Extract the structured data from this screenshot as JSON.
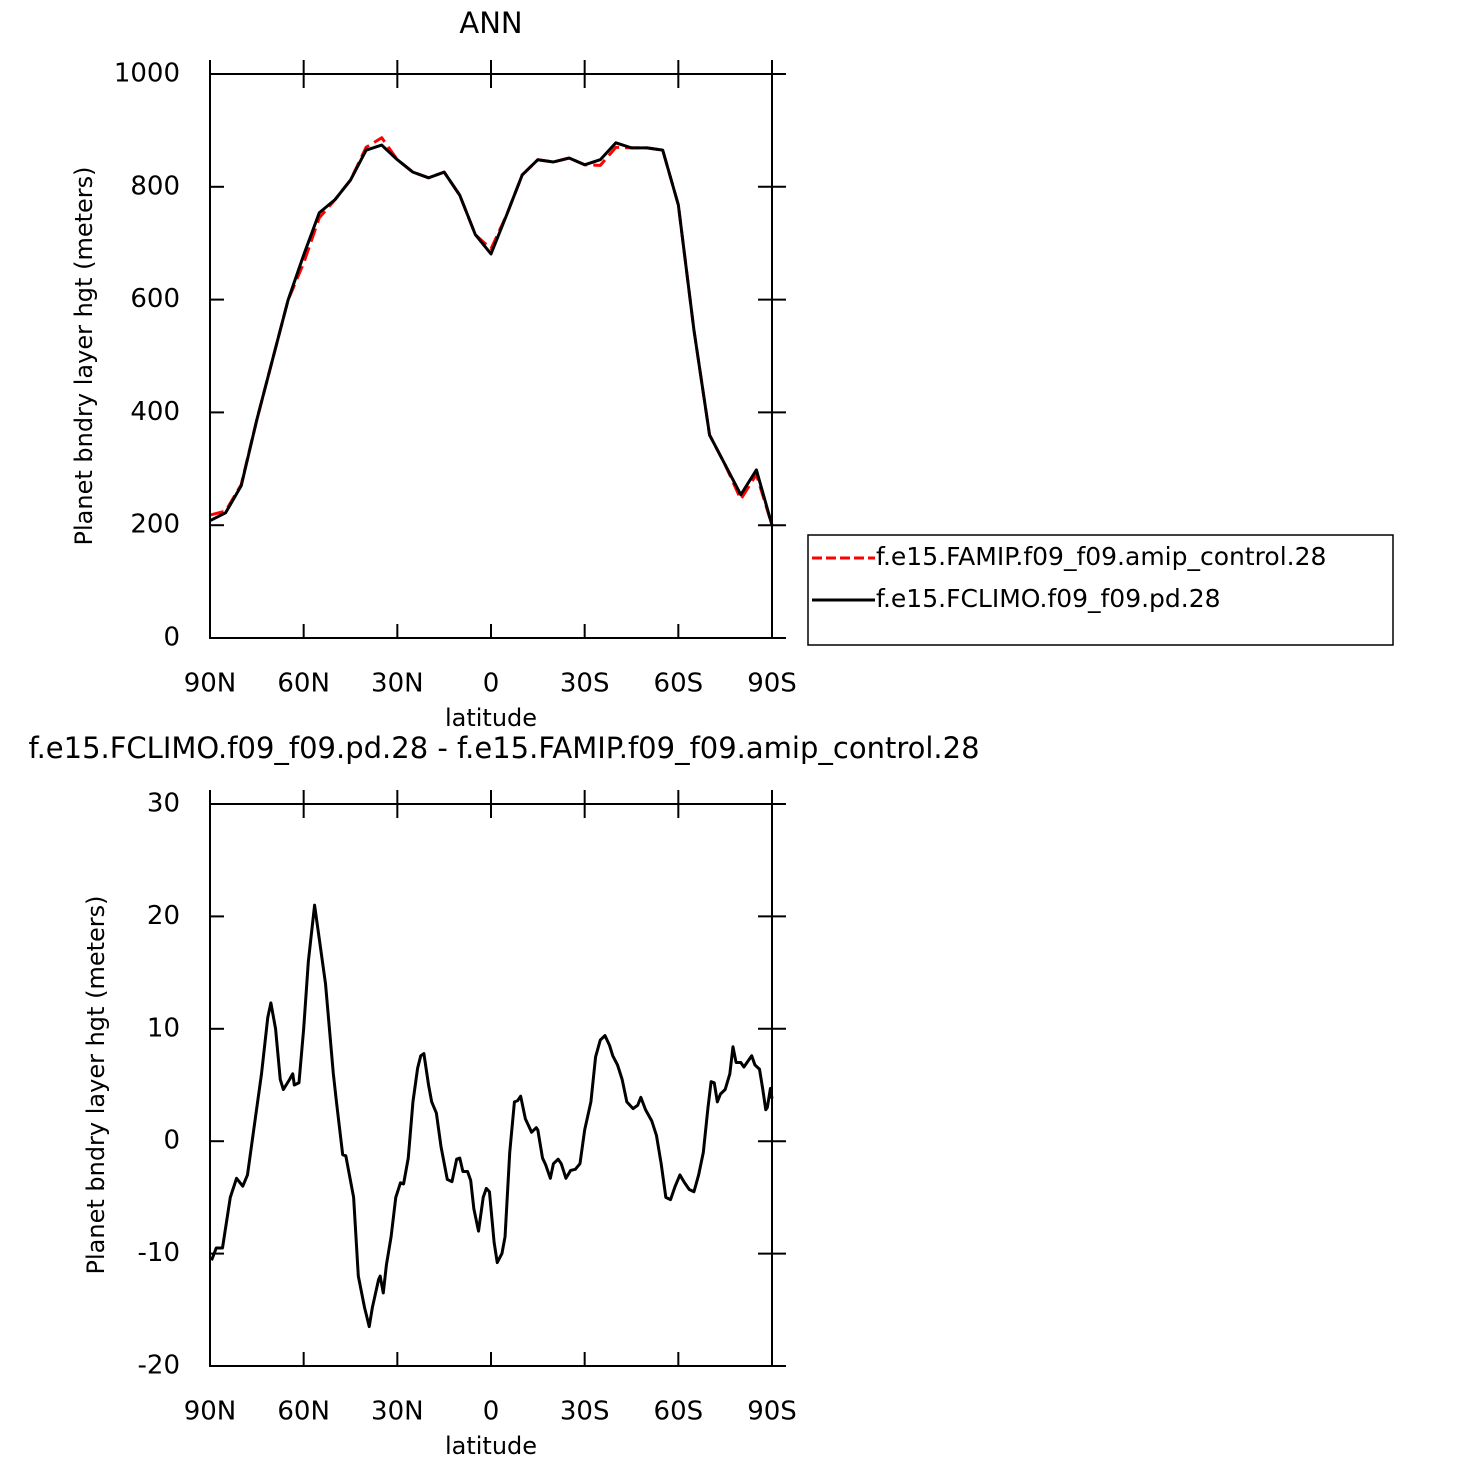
{
  "chart_data": [
    {
      "type": "line",
      "title": "ANN",
      "xlabel": "latitude",
      "ylabel": "Planet bndry layer hgt (meters)",
      "x": [
        90,
        85,
        80,
        75,
        70,
        65,
        60,
        55,
        50,
        45,
        40,
        35,
        30,
        25,
        20,
        15,
        10,
        5,
        0,
        -5,
        -10,
        -15,
        -20,
        -25,
        -30,
        -35,
        -40,
        -45,
        -50,
        -55,
        -60,
        -65,
        -70,
        -75,
        -80,
        -85,
        -90
      ],
      "series": [
        {
          "name": "f.e15.FAMIP.f09_f09.amip_control.28",
          "color": "#ff0000",
          "dash": true,
          "values": [
            218,
            225,
            272,
            387,
            493,
            599,
            665,
            745,
            777,
            812,
            870,
            887,
            848,
            826,
            816,
            826,
            785,
            715,
            690,
            750,
            821,
            848,
            844,
            851,
            839,
            838,
            870,
            869,
            869,
            865,
            768,
            546,
            360,
            307,
            246,
            290,
            200
          ]
        },
        {
          "name": "f.e15.FCLIMO.f09_f09.pd.28",
          "color": "#000000",
          "dash": false,
          "values": [
            208,
            222,
            270,
            387,
            493,
            599,
            679,
            754,
            777,
            812,
            865,
            874,
            848,
            826,
            816,
            826,
            785,
            715,
            681,
            750,
            821,
            848,
            844,
            851,
            839,
            848,
            878,
            869,
            869,
            865,
            768,
            546,
            360,
            307,
            254,
            298,
            200
          ]
        }
      ],
      "xlim": [
        90,
        -90
      ],
      "xticks": [
        {
          "value": 90,
          "label": "90N"
        },
        {
          "value": 60,
          "label": "60N"
        },
        {
          "value": 30,
          "label": "30N"
        },
        0,
        {
          "value": -30,
          "label": "30S"
        },
        {
          "value": -60,
          "label": "60S"
        },
        {
          "value": -90,
          "label": "90S"
        }
      ],
      "ylim": [
        0,
        1000
      ],
      "yticks": [
        0,
        200,
        400,
        600,
        800,
        1000
      ],
      "legend": "right"
    },
    {
      "type": "line",
      "title": "f.e15.FCLIMO.f09_f09.pd.28 - f.e15.FAMIP.f09_f09.amip_control.28",
      "xlabel": "latitude",
      "ylabel": "Planet bndry layer hgt (meters)",
      "color": "#000000",
      "x": [
        89.5,
        88,
        86,
        83.5,
        81.5,
        79.5,
        78,
        75.5,
        73.5,
        71.5,
        70.5,
        69,
        67.5,
        66.5,
        64.5,
        63.5,
        63,
        61.5,
        60,
        58.5,
        56.5,
        55,
        53,
        50.5,
        49.5,
        47.5,
        46.5,
        44,
        42.5,
        40.5,
        39,
        38,
        36,
        35.5,
        34.5,
        33.5,
        32,
        30.5,
        29,
        28,
        26.5,
        25,
        23.5,
        22.5,
        21.5,
        20,
        19,
        17.5,
        16,
        14,
        12.5,
        11,
        10,
        9,
        7.5,
        6.5,
        5.5,
        4,
        2.5,
        1.5,
        0.5,
        -1,
        -2,
        -3.5,
        -4.5,
        -6,
        -7.5,
        -8.5,
        -9.5,
        -11,
        -13,
        -14.5,
        -15,
        -16.5,
        -17.5,
        -19,
        -20,
        -21.5,
        -22.5,
        -24,
        -25.5,
        -27,
        -28.5,
        -30,
        -32,
        -33.5,
        -35,
        -36.5,
        -38,
        -39,
        -40.5,
        -42,
        -43.5,
        -45.5,
        -47,
        -48,
        -49.5,
        -51.5,
        -53,
        -54.5,
        -56,
        -57.5,
        -59,
        -60.5,
        -62,
        -63.5,
        -65,
        -66.5,
        -68,
        -69.5,
        -70.5,
        -71.5,
        -72.5,
        -73.5,
        -75,
        -76.5,
        -77.5,
        -78.5,
        -80,
        -81,
        -82.5,
        -83.5,
        -84.5,
        -86,
        -87,
        -88,
        -88.5,
        -89.5,
        -90
      ],
      "values": [
        -10.6,
        -9.5,
        -9.5,
        -5,
        -3.3,
        -4,
        -3,
        2,
        6,
        11,
        12.3,
        10,
        5.5,
        4.6,
        5.5,
        6,
        5,
        5.2,
        10,
        16,
        21,
        18,
        14,
        6,
        3.5,
        -1.2,
        -1.3,
        -5,
        -12,
        -14.8,
        -16.5,
        -14.8,
        -12.3,
        -12,
        -13.5,
        -11,
        -8.5,
        -5,
        -3.7,
        -3.8,
        -1.5,
        3.5,
        6.5,
        7.6,
        7.8,
        5,
        3.5,
        2.5,
        -0.5,
        -3.4,
        -3.6,
        -1.6,
        -1.5,
        -2.7,
        -2.7,
        -3.5,
        -6,
        -8,
        -5,
        -4.2,
        -4.5,
        -9,
        -10.8,
        -10,
        -8.5,
        -1,
        3.5,
        3.6,
        4,
        2,
        0.8,
        1.2,
        1,
        -1.5,
        -2.1,
        -3.3,
        -2,
        -1.6,
        -2,
        -3.3,
        -2.6,
        -2.5,
        -2,
        1,
        3.5,
        7.5,
        9,
        9.4,
        8.5,
        7.6,
        6.8,
        5.5,
        3.5,
        2.9,
        3.2,
        3.9,
        2.8,
        1.8,
        0.5,
        -2,
        -5,
        -5.2,
        -4,
        -3,
        -3.7,
        -4.3,
        -4.5,
        -3,
        -1,
        3,
        5.3,
        5.2,
        3.5,
        4.2,
        4.6,
        6,
        8.4,
        7,
        7,
        6.6,
        7.2,
        7.6,
        6.8,
        6.4,
        4.7,
        2.8,
        3,
        4.7,
        3.8
      ],
      "xlim": [
        90,
        -90
      ],
      "xticks": [
        {
          "value": 90,
          "label": "90N"
        },
        {
          "value": 60,
          "label": "60N"
        },
        {
          "value": 30,
          "label": "30N"
        },
        0,
        {
          "value": -30,
          "label": "30S"
        },
        {
          "value": -60,
          "label": "60S"
        },
        {
          "value": -90,
          "label": "90S"
        }
      ],
      "ylim": [
        -20,
        30
      ],
      "yticks": [
        -20,
        -10,
        0,
        10,
        20,
        30
      ]
    }
  ]
}
